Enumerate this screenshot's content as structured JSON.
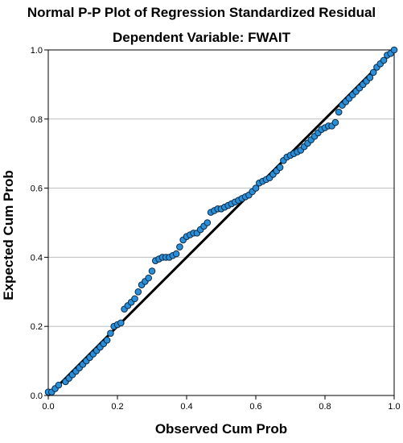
{
  "chart_data": {
    "type": "scatter",
    "title": "Normal P-P Plot of Regression Standardized Residual",
    "subtitle": "Dependent Variable: FWAIT",
    "xlabel": "Observed Cum Prob",
    "ylabel": "Expected Cum Prob",
    "xlim": [
      0,
      1
    ],
    "ylim": [
      0,
      1
    ],
    "xticks": [
      "0.0",
      "0.2",
      "0.4",
      "0.6",
      "0.8",
      "1.0"
    ],
    "yticks": [
      "0.0",
      "0.2",
      "0.4",
      "0.6",
      "0.8",
      "1.0"
    ],
    "grid": "horizontal",
    "reference_line": [
      [
        0,
        0
      ],
      [
        1,
        1
      ]
    ],
    "series": [
      {
        "marker_color": "#2a8fd9",
        "marker_edge": "#0b2a45",
        "points": [
          [
            0.0,
            0.01
          ],
          [
            0.01,
            0.01
          ],
          [
            0.02,
            0.02
          ],
          [
            0.03,
            0.03
          ],
          [
            0.05,
            0.04
          ],
          [
            0.06,
            0.05
          ],
          [
            0.07,
            0.06
          ],
          [
            0.08,
            0.07
          ],
          [
            0.09,
            0.08
          ],
          [
            0.1,
            0.09
          ],
          [
            0.11,
            0.1
          ],
          [
            0.12,
            0.11
          ],
          [
            0.13,
            0.12
          ],
          [
            0.14,
            0.13
          ],
          [
            0.15,
            0.14
          ],
          [
            0.16,
            0.15
          ],
          [
            0.17,
            0.16
          ],
          [
            0.18,
            0.18
          ],
          [
            0.19,
            0.2
          ],
          [
            0.2,
            0.205
          ],
          [
            0.21,
            0.21
          ],
          [
            0.22,
            0.25
          ],
          [
            0.23,
            0.26
          ],
          [
            0.24,
            0.27
          ],
          [
            0.25,
            0.28
          ],
          [
            0.26,
            0.3
          ],
          [
            0.27,
            0.32
          ],
          [
            0.28,
            0.33
          ],
          [
            0.29,
            0.34
          ],
          [
            0.3,
            0.36
          ],
          [
            0.31,
            0.39
          ],
          [
            0.32,
            0.395
          ],
          [
            0.33,
            0.4
          ],
          [
            0.34,
            0.4
          ],
          [
            0.35,
            0.4
          ],
          [
            0.36,
            0.405
          ],
          [
            0.37,
            0.41
          ],
          [
            0.38,
            0.43
          ],
          [
            0.39,
            0.45
          ],
          [
            0.4,
            0.46
          ],
          [
            0.41,
            0.465
          ],
          [
            0.42,
            0.47
          ],
          [
            0.43,
            0.47
          ],
          [
            0.44,
            0.48
          ],
          [
            0.45,
            0.49
          ],
          [
            0.46,
            0.5
          ],
          [
            0.47,
            0.53
          ],
          [
            0.48,
            0.535
          ],
          [
            0.49,
            0.54
          ],
          [
            0.5,
            0.54
          ],
          [
            0.51,
            0.545
          ],
          [
            0.52,
            0.55
          ],
          [
            0.53,
            0.555
          ],
          [
            0.54,
            0.56
          ],
          [
            0.55,
            0.565
          ],
          [
            0.56,
            0.57
          ],
          [
            0.57,
            0.575
          ],
          [
            0.58,
            0.58
          ],
          [
            0.59,
            0.59
          ],
          [
            0.6,
            0.6
          ],
          [
            0.61,
            0.615
          ],
          [
            0.62,
            0.62
          ],
          [
            0.63,
            0.625
          ],
          [
            0.64,
            0.63
          ],
          [
            0.65,
            0.64
          ],
          [
            0.66,
            0.65
          ],
          [
            0.67,
            0.66
          ],
          [
            0.68,
            0.68
          ],
          [
            0.69,
            0.69
          ],
          [
            0.7,
            0.695
          ],
          [
            0.71,
            0.7
          ],
          [
            0.72,
            0.705
          ],
          [
            0.73,
            0.71
          ],
          [
            0.74,
            0.72
          ],
          [
            0.75,
            0.73
          ],
          [
            0.76,
            0.74
          ],
          [
            0.77,
            0.75
          ],
          [
            0.78,
            0.76
          ],
          [
            0.79,
            0.77
          ],
          [
            0.8,
            0.775
          ],
          [
            0.81,
            0.78
          ],
          [
            0.82,
            0.78
          ],
          [
            0.83,
            0.79
          ],
          [
            0.84,
            0.82
          ],
          [
            0.85,
            0.84
          ],
          [
            0.86,
            0.85
          ],
          [
            0.87,
            0.86
          ],
          [
            0.88,
            0.87
          ],
          [
            0.89,
            0.88
          ],
          [
            0.9,
            0.89
          ],
          [
            0.91,
            0.9
          ],
          [
            0.92,
            0.91
          ],
          [
            0.93,
            0.92
          ],
          [
            0.94,
            0.935
          ],
          [
            0.95,
            0.95
          ],
          [
            0.96,
            0.96
          ],
          [
            0.97,
            0.97
          ],
          [
            0.98,
            0.985
          ],
          [
            0.99,
            0.99
          ],
          [
            1.0,
            1.0
          ]
        ]
      }
    ]
  }
}
